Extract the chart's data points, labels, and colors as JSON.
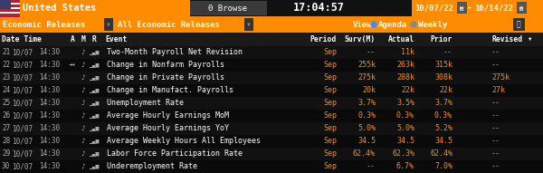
{
  "bg_color": "#111111",
  "orange": "#FF8C00",
  "gray_header_bg": "#1e1e1e",
  "white": "#FFFFFF",
  "light_gray": "#AAAAAA",
  "dark_gray_btn": "#333333",
  "row_even": "#111111",
  "row_odd": "#0a0a0a",
  "header1_text": "United States",
  "header1_time": "17:04:57",
  "header2_left": "Economic Releases",
  "header2_right": "All Economic Releases",
  "col_headers": [
    "Date  Time",
    "A",
    "M",
    "R",
    "Event",
    "Period",
    "Surv(M)",
    "Actual",
    "Prior",
    "Revised"
  ],
  "rows": [
    {
      "num": "21",
      "date": "10/07",
      "time": "14:30",
      "has_speaker": false,
      "event": "Two-Month Payroll Net Revision",
      "period": "Sep",
      "surv": "--",
      "actual": "11k",
      "prior": "--",
      "revised": "--"
    },
    {
      "num": "22",
      "date": "10/07",
      "time": "14:30",
      "has_speaker": true,
      "event": "Change in Nonfarm Payrolls",
      "period": "Sep",
      "surv": "255k",
      "actual": "263k",
      "prior": "315k",
      "revised": "--"
    },
    {
      "num": "23",
      "date": "10/07",
      "time": "14:30",
      "has_speaker": false,
      "event": "Change in Private Payrolls",
      "period": "Sep",
      "surv": "275k",
      "actual": "288k",
      "prior": "308k",
      "revised": "275k"
    },
    {
      "num": "24",
      "date": "10/07",
      "time": "14:30",
      "has_speaker": false,
      "event": "Change in Manufact. Payrolls",
      "period": "Sep",
      "surv": "20k",
      "actual": "22k",
      "prior": "22k",
      "revised": "27k"
    },
    {
      "num": "25",
      "date": "10/07",
      "time": "14:30",
      "has_speaker": false,
      "event": "Unemployment Rate",
      "period": "Sep",
      "surv": "3.7%",
      "actual": "3.5%",
      "prior": "3.7%",
      "revised": "--"
    },
    {
      "num": "26",
      "date": "10/07",
      "time": "14:30",
      "has_speaker": false,
      "event": "Average Hourly Earnings MoM",
      "period": "Sep",
      "surv": "0.3%",
      "actual": "0.3%",
      "prior": "0.3%",
      "revised": "--"
    },
    {
      "num": "27",
      "date": "10/07",
      "time": "14:30",
      "has_speaker": false,
      "event": "Average Hourly Earnings YoY",
      "period": "Sep",
      "surv": "5.0%",
      "actual": "5.0%",
      "prior": "5.2%",
      "revised": "--"
    },
    {
      "num": "28",
      "date": "10/07",
      "time": "14:30",
      "has_speaker": false,
      "event": "Average Weekly Hours All Employees",
      "period": "Sep",
      "surv": "34.5",
      "actual": "34.5",
      "prior": "34.5",
      "revised": "--"
    },
    {
      "num": "29",
      "date": "10/07",
      "time": "14:30",
      "has_speaker": false,
      "event": "Labor Force Participation Rate",
      "period": "Sep",
      "surv": "62.4%",
      "actual": "62.3%",
      "prior": "62.4%",
      "revised": "--"
    },
    {
      "num": "30",
      "date": "10/07",
      "time": "14:30",
      "has_speaker": false,
      "event": "Underemployment Rate",
      "period": "Sep",
      "surv": "--",
      "actual": "6.7%",
      "prior": "7.0%",
      "revised": "--"
    }
  ],
  "flag_stripes": [
    "#B22234",
    "#FFFFFF",
    "#B22234",
    "#FFFFFF",
    "#B22234",
    "#FFFFFF",
    "#B22234"
  ],
  "flag_blue": "#3C3B6E",
  "blue_dot": "#4488FF",
  "gray_dot": "#888888"
}
